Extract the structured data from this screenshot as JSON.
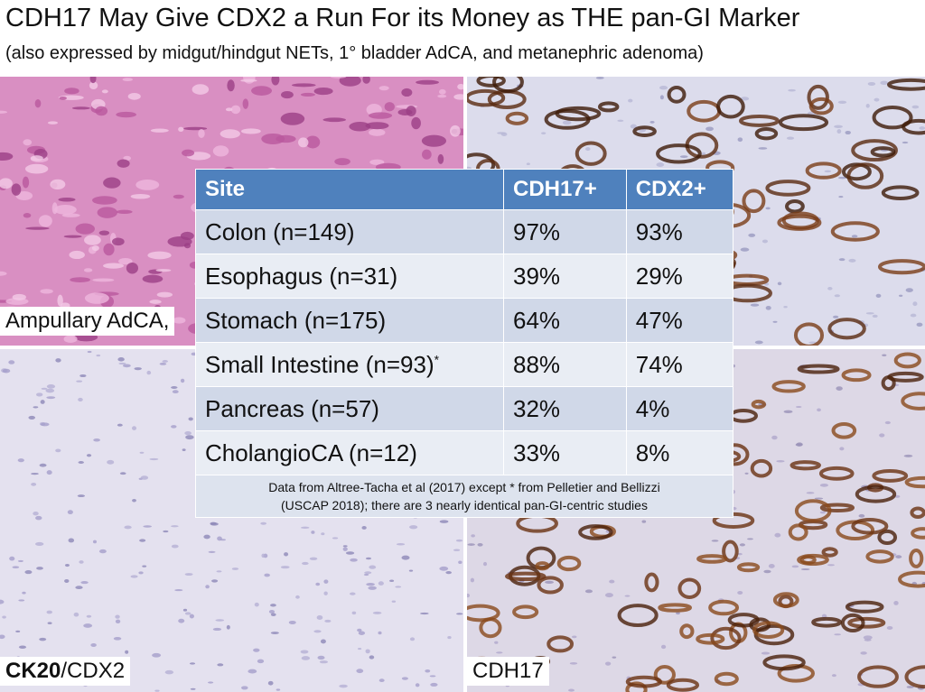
{
  "header": {
    "title": "CDH17 May Give CDX2 a Run For its Money as THE pan-GI Marker",
    "subtitle": "(also expressed by midgut/hindgut NETs, 1° bladder AdCA, and metanephric adenoma)"
  },
  "panels": {
    "top_left_label": "Ampullary AdCA,",
    "bottom_left_label_bold": "CK20",
    "bottom_left_label_rest": "/CDX2",
    "bottom_right_label": "CDH17"
  },
  "table": {
    "columns": [
      "Site",
      "CDH17+",
      "CDX2+"
    ],
    "rows": [
      [
        "Colon (n=149)",
        "97%",
        "93%"
      ],
      [
        "Esophagus (n=31)",
        "39%",
        "29%"
      ],
      [
        "Stomach (n=175)",
        "64%",
        "47%"
      ],
      [
        "Small Intestine (n=93)",
        "88%",
        "74%"
      ],
      [
        "Pancreas (n=57)",
        "32%",
        "4%"
      ],
      [
        "CholangioCA (n=12)",
        "33%",
        "8%"
      ]
    ],
    "row_mark": "*",
    "note": [
      "Data from Altree-Tacha et al (2017) except * from Pelletier and Bellizzi",
      "(USCAP 2018); there are 3 nearly identical pan-GI-centric studies"
    ]
  }
}
